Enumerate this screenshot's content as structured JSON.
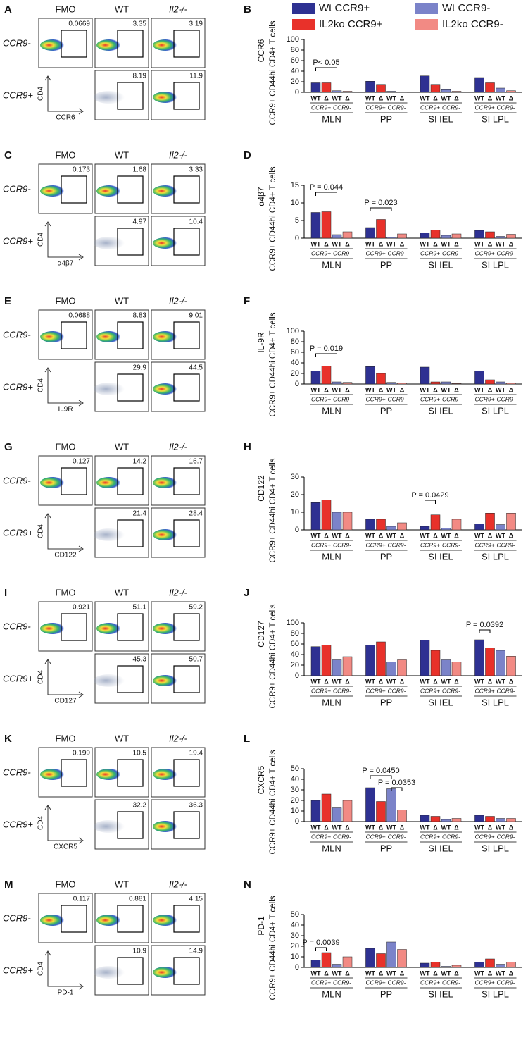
{
  "legend": {
    "entries": [
      {
        "name": "Wt CCR9+",
        "color": "#2e3192"
      },
      {
        "name": "Wt CCR9-",
        "color": "#7b83c9"
      },
      {
        "name": "IL2ko CCR9+",
        "color": "#e8312a"
      },
      {
        "name": "IL2ko CCR9-",
        "color": "#f28a84"
      }
    ]
  },
  "flow_panels": [
    {
      "letter": "A",
      "columns": [
        "FMO",
        "WT",
        "Il2-/-"
      ],
      "rows": [
        "CCR9-",
        "CCR9+"
      ],
      "y_axis": "CD4",
      "x_axis": "CCR6",
      "gates_ccr9_neg": [
        "0.0669",
        "3.35",
        "3.19"
      ],
      "gates_ccr9_pos": [
        "8.19",
        "11.9"
      ]
    },
    {
      "letter": "C",
      "columns": [
        "FMO",
        "WT",
        "Il2-/-"
      ],
      "rows": [
        "CCR9-",
        "CCR9+"
      ],
      "y_axis": "CD4",
      "x_axis": "α4β7",
      "gates_ccr9_neg": [
        "0.173",
        "1.68",
        "3.33"
      ],
      "gates_ccr9_pos": [
        "4.97",
        "10.4"
      ]
    },
    {
      "letter": "E",
      "columns": [
        "FMO",
        "WT",
        "Il2-/-"
      ],
      "rows": [
        "CCR9-",
        "CCR9+"
      ],
      "y_axis": "CD4",
      "x_axis": "IL9R",
      "gates_ccr9_neg": [
        "0.0688",
        "8.83",
        "9.01"
      ],
      "gates_ccr9_pos": [
        "29.9",
        "44.5"
      ]
    },
    {
      "letter": "G",
      "columns": [
        "FMO",
        "WT",
        "Il2-/-"
      ],
      "rows": [
        "CCR9-",
        "CCR9+"
      ],
      "y_axis": "CD4",
      "x_axis": "CD122",
      "gates_ccr9_neg": [
        "0.127",
        "14.2",
        "16.7"
      ],
      "gates_ccr9_pos": [
        "21.4",
        "28.4"
      ]
    },
    {
      "letter": "I",
      "columns": [
        "FMO",
        "WT",
        "Il2-/-"
      ],
      "rows": [
        "CCR9-",
        "CCR9+"
      ],
      "y_axis": "CD4",
      "x_axis": "CD127",
      "gates_ccr9_neg": [
        "0.921",
        "51.1",
        "59.2"
      ],
      "gates_ccr9_pos": [
        "45.3",
        "50.7"
      ]
    },
    {
      "letter": "K",
      "columns": [
        "FMO",
        "WT",
        "Il2-/-"
      ],
      "rows": [
        "CCR9-",
        "CCR9+"
      ],
      "y_axis": "CD4",
      "x_axis": "CXCR5",
      "gates_ccr9_neg": [
        "0.199",
        "10.5",
        "19.4"
      ],
      "gates_ccr9_pos": [
        "32.2",
        "36.3"
      ]
    },
    {
      "letter": "M",
      "columns": [
        "FMO",
        "WT",
        "Il2-/-"
      ],
      "rows": [
        "CCR9-",
        "CCR9+"
      ],
      "y_axis": "CD4",
      "x_axis": "PD-1",
      "gates_ccr9_neg": [
        "0.117",
        "0.881",
        "4.15"
      ],
      "gates_ccr9_pos": [
        "10.9",
        "14.9"
      ]
    }
  ],
  "chart_data": [
    {
      "type": "bar",
      "letter": "B",
      "marker": "CCR6",
      "ylabel": "CCR9± CD44hi CD4+ T cells",
      "categories": [
        "MLN",
        "PP",
        "SI IEL",
        "SI LPL"
      ],
      "genotypes": [
        "WT",
        "Δ"
      ],
      "subsets": [
        "CCR9+",
        "CCR9-"
      ],
      "ylim": [
        0,
        100
      ],
      "yticks": [
        0,
        20,
        40,
        60,
        80,
        100
      ],
      "annotations": [
        "P< 0.05"
      ],
      "series": [
        {
          "values": [
            18,
            21,
            31,
            28
          ]
        },
        {
          "values": [
            18,
            15,
            15,
            18
          ]
        },
        {
          "values": [
            3,
            2,
            5,
            8
          ]
        },
        {
          "values": [
            2,
            1,
            2,
            3
          ]
        }
      ]
    },
    {
      "type": "bar",
      "letter": "D",
      "marker": "α4β7",
      "ylabel": "CCR9± CD44hi CD4+ T cells",
      "categories": [
        "MLN",
        "PP",
        "SI IEL",
        "SI LPL"
      ],
      "genotypes": [
        "WT",
        "Δ"
      ],
      "subsets": [
        "CCR9+",
        "CCR9-"
      ],
      "ylim": [
        0,
        15
      ],
      "yticks": [
        0,
        5,
        10,
        15
      ],
      "annotations": [
        "P = 0.044",
        "P = 0.023"
      ],
      "series": [
        {
          "values": [
            7.3,
            3,
            1.5,
            2.2
          ]
        },
        {
          "values": [
            7.5,
            5.3,
            2.3,
            1.8
          ]
        },
        {
          "values": [
            1,
            0.3,
            0.8,
            0.5
          ]
        },
        {
          "values": [
            1.8,
            1.2,
            1.2,
            1.1
          ]
        }
      ]
    },
    {
      "type": "bar",
      "letter": "F",
      "marker": "IL-9R",
      "ylabel": "CCR9± CD44hi CD4+ T cells",
      "categories": [
        "MLN",
        "PP",
        "SI IEL",
        "SI LPL"
      ],
      "genotypes": [
        "WT",
        "Δ"
      ],
      "subsets": [
        "CCR9+",
        "CCR9-"
      ],
      "ylim": [
        0,
        100
      ],
      "yticks": [
        0,
        20,
        40,
        60,
        80,
        100
      ],
      "annotations": [
        "P = 0.019"
      ],
      "series": [
        {
          "values": [
            25,
            33,
            32,
            25
          ]
        },
        {
          "values": [
            34,
            20,
            4,
            8
          ]
        },
        {
          "values": [
            4,
            3,
            4,
            4
          ]
        },
        {
          "values": [
            3,
            2,
            1,
            2
          ]
        }
      ]
    },
    {
      "type": "bar",
      "letter": "H",
      "marker": "CD122",
      "ylabel": "CCR9± CD44hi CD4+ T cells",
      "categories": [
        "MLN",
        "PP",
        "SI IEL",
        "SI LPL"
      ],
      "genotypes": [
        "WT",
        "Δ"
      ],
      "subsets": [
        "CCR9+",
        "CCR9-"
      ],
      "ylim": [
        0,
        30
      ],
      "yticks": [
        0,
        10,
        20,
        30
      ],
      "annotations": [
        "P = 0.0429"
      ],
      "series": [
        {
          "values": [
            15.5,
            6,
            2,
            3.5
          ]
        },
        {
          "values": [
            17,
            6,
            8.5,
            9.5
          ]
        },
        {
          "values": [
            10,
            2,
            1,
            3
          ]
        },
        {
          "values": [
            10,
            4,
            6,
            9.5
          ]
        }
      ]
    },
    {
      "type": "bar",
      "letter": "J",
      "marker": "CD127",
      "ylabel": "CCR9± CD44hi CD4+ T cells",
      "categories": [
        "MLN",
        "PP",
        "SI IEL",
        "SI LPL"
      ],
      "genotypes": [
        "WT",
        "Δ"
      ],
      "subsets": [
        "CCR9+",
        "CCR9-"
      ],
      "ylim": [
        0,
        100
      ],
      "yticks": [
        0,
        20,
        40,
        60,
        80,
        100
      ],
      "annotations": [
        "P = 0.0392"
      ],
      "series": [
        {
          "values": [
            55,
            58,
            67,
            68
          ]
        },
        {
          "values": [
            58,
            64,
            48,
            53
          ]
        },
        {
          "values": [
            30,
            26,
            30,
            48
          ]
        },
        {
          "values": [
            36,
            30,
            26,
            37
          ]
        }
      ]
    },
    {
      "type": "bar",
      "letter": "L",
      "marker": "CXCR5",
      "ylabel": "CCR9± CD44hi CD4+ T cells",
      "categories": [
        "MLN",
        "PP",
        "SI IEL",
        "SI LPL"
      ],
      "genotypes": [
        "WT",
        "Δ"
      ],
      "subsets": [
        "CCR9+",
        "CCR9-"
      ],
      "ylim": [
        0,
        50
      ],
      "yticks": [
        0,
        10,
        20,
        30,
        40,
        50
      ],
      "annotations": [
        "P = 0.0450",
        "P = 0.0353"
      ],
      "series": [
        {
          "values": [
            20,
            32,
            6,
            6
          ]
        },
        {
          "values": [
            26,
            19,
            5,
            5
          ]
        },
        {
          "values": [
            13,
            31,
            2,
            3
          ]
        },
        {
          "values": [
            20,
            11,
            3,
            3
          ]
        }
      ]
    },
    {
      "type": "bar",
      "letter": "N",
      "marker": "PD-1",
      "ylabel": "CCR9± CD44hi CD4+ T cells",
      "categories": [
        "MLN",
        "PP",
        "SI IEL",
        "SI LPL"
      ],
      "genotypes": [
        "WT",
        "Δ"
      ],
      "subsets": [
        "CCR9+",
        "CCR9-"
      ],
      "ylim": [
        0,
        50
      ],
      "yticks": [
        0,
        10,
        20,
        30,
        40,
        50
      ],
      "annotations": [
        "P = 0.0039"
      ],
      "series": [
        {
          "values": [
            7,
            18,
            4,
            5
          ]
        },
        {
          "values": [
            14,
            13,
            5,
            8
          ]
        },
        {
          "values": [
            3,
            24,
            1,
            3
          ]
        },
        {
          "values": [
            10,
            17,
            2,
            5
          ]
        }
      ]
    }
  ]
}
